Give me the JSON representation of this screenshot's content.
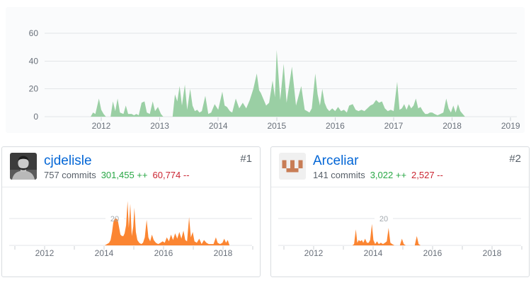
{
  "colors": {
    "area_green": "#9acfa4",
    "area_orange": "#fb8532",
    "link_blue": "#0366d6",
    "additions_green": "#28a745",
    "deletions_red": "#cb2431",
    "panel_bg": "#fafbfc",
    "grid": "#e3e6e8",
    "tick": "#ccd1d5",
    "axis_text": "#69707a",
    "inline_label_text": "#a2a8ae",
    "identicon_fg": "#c87d56",
    "identicon_bg": "#f0f0f0"
  },
  "contributors": [
    {
      "rank": "#1",
      "name": "cjdelisle",
      "commits": "757 commits",
      "additions": "301,455 ++",
      "deletions": "60,774 --",
      "avatar_type": "grayscale-photo-portrait"
    },
    {
      "rank": "#2",
      "name": "Arceliar",
      "commits": "141 commits",
      "additions": "3,022 ++",
      "deletions": "2,527 --",
      "avatar_type": "orange-pixel-identicon"
    }
  ],
  "chart_data": [
    {
      "id": "all-contributors",
      "type": "area",
      "title": "",
      "color": "#9acfa4",
      "xlim": [
        2011.06,
        2019.11
      ],
      "ylim": [
        0,
        64
      ],
      "grid": true,
      "y_ticks": [
        0,
        20,
        40,
        60
      ],
      "x_ticks": [
        2012,
        2013,
        2014,
        2015,
        2016,
        2017,
        2018,
        2019
      ],
      "x_labels": [
        2012,
        2013,
        2014,
        2015,
        2016,
        2017,
        2018,
        2019
      ],
      "points": [
        [
          2011.82,
          0
        ],
        [
          2011.86,
          3
        ],
        [
          2011.9,
          2
        ],
        [
          2011.96,
          13
        ],
        [
          2012.0,
          5
        ],
        [
          2012.04,
          2
        ],
        [
          2012.08,
          0
        ],
        [
          2012.16,
          0
        ],
        [
          2012.2,
          11
        ],
        [
          2012.24,
          4
        ],
        [
          2012.28,
          13
        ],
        [
          2012.32,
          3
        ],
        [
          2012.38,
          2
        ],
        [
          2012.42,
          8
        ],
        [
          2012.46,
          2
        ],
        [
          2012.52,
          2
        ],
        [
          2012.56,
          1
        ],
        [
          2012.6,
          2
        ],
        [
          2012.64,
          1
        ],
        [
          2012.69,
          10
        ],
        [
          2012.74,
          11
        ],
        [
          2012.78,
          3
        ],
        [
          2012.83,
          2
        ],
        [
          2012.88,
          11
        ],
        [
          2012.92,
          4
        ],
        [
          2012.97,
          7
        ],
        [
          2013.02,
          2
        ],
        [
          2013.06,
          0
        ],
        [
          2013.22,
          0
        ],
        [
          2013.26,
          16
        ],
        [
          2013.3,
          11
        ],
        [
          2013.34,
          22
        ],
        [
          2013.38,
          8
        ],
        [
          2013.43,
          23
        ],
        [
          2013.47,
          5
        ],
        [
          2013.52,
          20
        ],
        [
          2013.56,
          8
        ],
        [
          2013.6,
          4
        ],
        [
          2013.64,
          5
        ],
        [
          2013.68,
          3
        ],
        [
          2013.72,
          4
        ],
        [
          2013.78,
          15
        ],
        [
          2013.83,
          2
        ],
        [
          2013.88,
          3
        ],
        [
          2013.94,
          9
        ],
        [
          2014.0,
          5
        ],
        [
          2014.07,
          18
        ],
        [
          2014.11,
          8
        ],
        [
          2014.15,
          7
        ],
        [
          2014.2,
          4
        ],
        [
          2014.24,
          3
        ],
        [
          2014.3,
          13
        ],
        [
          2014.36,
          6
        ],
        [
          2014.42,
          10
        ],
        [
          2014.48,
          6
        ],
        [
          2014.54,
          12
        ],
        [
          2014.6,
          20
        ],
        [
          2014.66,
          31
        ],
        [
          2014.7,
          19
        ],
        [
          2014.73,
          17
        ],
        [
          2014.78,
          12
        ],
        [
          2014.82,
          8
        ],
        [
          2014.87,
          10
        ],
        [
          2014.93,
          26
        ],
        [
          2014.97,
          14
        ],
        [
          2015.0,
          48
        ],
        [
          2015.06,
          12
        ],
        [
          2015.12,
          38
        ],
        [
          2015.17,
          10
        ],
        [
          2015.26,
          36
        ],
        [
          2015.33,
          8
        ],
        [
          2015.42,
          22
        ],
        [
          2015.48,
          5
        ],
        [
          2015.52,
          4
        ],
        [
          2015.56,
          3
        ],
        [
          2015.6,
          6
        ],
        [
          2015.66,
          31
        ],
        [
          2015.7,
          16
        ],
        [
          2015.74,
          8
        ],
        [
          2015.78,
          20
        ],
        [
          2015.82,
          10
        ],
        [
          2015.86,
          6
        ],
        [
          2015.9,
          4
        ],
        [
          2015.95,
          6
        ],
        [
          2016.0,
          4
        ],
        [
          2016.05,
          7
        ],
        [
          2016.1,
          4
        ],
        [
          2016.15,
          5
        ],
        [
          2016.2,
          3
        ],
        [
          2016.24,
          8
        ],
        [
          2016.3,
          9
        ],
        [
          2016.35,
          5
        ],
        [
          2016.4,
          4
        ],
        [
          2016.45,
          5
        ],
        [
          2016.5,
          4
        ],
        [
          2016.55,
          6
        ],
        [
          2016.6,
          8
        ],
        [
          2016.65,
          9
        ],
        [
          2016.7,
          12
        ],
        [
          2016.75,
          10
        ],
        [
          2016.8,
          11
        ],
        [
          2016.85,
          6
        ],
        [
          2016.9,
          4
        ],
        [
          2016.95,
          5
        ],
        [
          2017.0,
          4
        ],
        [
          2017.06,
          25
        ],
        [
          2017.1,
          5
        ],
        [
          2017.14,
          6
        ],
        [
          2017.18,
          9
        ],
        [
          2017.22,
          5
        ],
        [
          2017.26,
          9
        ],
        [
          2017.3,
          6
        ],
        [
          2017.34,
          8
        ],
        [
          2017.38,
          13
        ],
        [
          2017.42,
          6
        ],
        [
          2017.46,
          7
        ],
        [
          2017.5,
          4
        ],
        [
          2017.54,
          2
        ],
        [
          2017.58,
          2
        ],
        [
          2017.62,
          3
        ],
        [
          2017.66,
          3
        ],
        [
          2017.7,
          2
        ],
        [
          2017.75,
          1
        ],
        [
          2017.8,
          2
        ],
        [
          2017.85,
          3
        ],
        [
          2017.9,
          13
        ],
        [
          2017.94,
          6
        ],
        [
          2017.98,
          3
        ],
        [
          2018.02,
          8
        ],
        [
          2018.06,
          3
        ],
        [
          2018.1,
          9
        ],
        [
          2018.14,
          4
        ],
        [
          2018.18,
          2
        ],
        [
          2018.22,
          0
        ]
      ]
    },
    {
      "id": "contributor-1",
      "type": "area",
      "name": "cjdelisle",
      "color": "#fb8532",
      "xlim": [
        2010.8,
        2018.97
      ],
      "ylim": [
        0,
        43
      ],
      "grid": true,
      "y_gridline": 20,
      "y_gridline_label": "20",
      "x_ticks": [
        2011,
        2012,
        2013,
        2014,
        2015,
        2016,
        2017,
        2018,
        2019
      ],
      "x_labels": [
        2012,
        2014,
        2016,
        2018
      ],
      "points": [
        [
          2014.02,
          0
        ],
        [
          2014.1,
          1
        ],
        [
          2014.17,
          2
        ],
        [
          2014.22,
          4
        ],
        [
          2014.27,
          10
        ],
        [
          2014.31,
          17
        ],
        [
          2014.36,
          20
        ],
        [
          2014.41,
          20
        ],
        [
          2014.46,
          19
        ],
        [
          2014.5,
          14
        ],
        [
          2014.55,
          8
        ],
        [
          2014.6,
          7
        ],
        [
          2014.65,
          7
        ],
        [
          2014.69,
          9
        ],
        [
          2014.74,
          15
        ],
        [
          2014.79,
          33
        ],
        [
          2014.83,
          13
        ],
        [
          2014.88,
          31
        ],
        [
          2014.93,
          7
        ],
        [
          2014.98,
          14
        ],
        [
          2015.02,
          28
        ],
        [
          2015.07,
          10
        ],
        [
          2015.12,
          4
        ],
        [
          2015.18,
          2
        ],
        [
          2015.25,
          1
        ],
        [
          2015.31,
          2
        ],
        [
          2015.37,
          6
        ],
        [
          2015.43,
          19
        ],
        [
          2015.49,
          6
        ],
        [
          2015.55,
          3
        ],
        [
          2015.61,
          8
        ],
        [
          2015.67,
          4
        ],
        [
          2015.74,
          2
        ],
        [
          2015.82,
          1
        ],
        [
          2015.9,
          2
        ],
        [
          2015.97,
          3
        ],
        [
          2016.04,
          2
        ],
        [
          2016.11,
          6
        ],
        [
          2016.18,
          3
        ],
        [
          2016.25,
          8
        ],
        [
          2016.32,
          4
        ],
        [
          2016.39,
          9
        ],
        [
          2016.46,
          5
        ],
        [
          2016.53,
          10
        ],
        [
          2016.6,
          5
        ],
        [
          2016.67,
          11
        ],
        [
          2016.73,
          4
        ],
        [
          2016.79,
          3
        ],
        [
          2016.86,
          21
        ],
        [
          2016.92,
          6
        ],
        [
          2016.98,
          10
        ],
        [
          2017.04,
          3
        ],
        [
          2017.12,
          2
        ],
        [
          2017.2,
          5
        ],
        [
          2017.28,
          1
        ],
        [
          2017.36,
          4
        ],
        [
          2017.44,
          2
        ],
        [
          2017.52,
          1
        ],
        [
          2017.6,
          1
        ],
        [
          2017.68,
          1
        ],
        [
          2017.76,
          6
        ],
        [
          2017.82,
          2
        ],
        [
          2017.9,
          1
        ],
        [
          2017.98,
          2
        ],
        [
          2018.04,
          5
        ],
        [
          2018.1,
          2
        ],
        [
          2018.16,
          4
        ],
        [
          2018.22,
          0
        ]
      ]
    },
    {
      "id": "contributor-2",
      "type": "area",
      "name": "Arceliar",
      "color": "#fb8532",
      "xlim": [
        2010.8,
        2018.97
      ],
      "ylim": [
        0,
        43
      ],
      "grid": true,
      "y_gridline": 20,
      "y_gridline_label": "20",
      "x_ticks": [
        2011,
        2012,
        2013,
        2014,
        2015,
        2016,
        2017,
        2018,
        2019
      ],
      "x_labels": [
        2012,
        2014,
        2016,
        2018
      ],
      "points": [
        [
          2013.3,
          0
        ],
        [
          2013.36,
          1
        ],
        [
          2013.42,
          12
        ],
        [
          2013.47,
          2
        ],
        [
          2013.52,
          4
        ],
        [
          2013.57,
          3
        ],
        [
          2013.62,
          4
        ],
        [
          2013.67,
          2
        ],
        [
          2013.73,
          5
        ],
        [
          2013.79,
          2
        ],
        [
          2013.85,
          2
        ],
        [
          2013.9,
          4
        ],
        [
          2013.96,
          16
        ],
        [
          2014.01,
          4
        ],
        [
          2014.07,
          1
        ],
        [
          2014.13,
          3
        ],
        [
          2014.19,
          1
        ],
        [
          2014.26,
          2
        ],
        [
          2014.33,
          1
        ],
        [
          2014.4,
          2
        ],
        [
          2014.46,
          3
        ],
        [
          2014.52,
          13
        ],
        [
          2014.58,
          2
        ],
        [
          2014.64,
          1
        ],
        [
          2014.72,
          0
        ],
        [
          2014.9,
          0
        ],
        [
          2014.97,
          5
        ],
        [
          2015.03,
          1
        ],
        [
          2015.1,
          0
        ],
        [
          2015.4,
          0
        ],
        [
          2015.47,
          7
        ],
        [
          2015.53,
          1
        ],
        [
          2015.6,
          0
        ]
      ]
    }
  ]
}
